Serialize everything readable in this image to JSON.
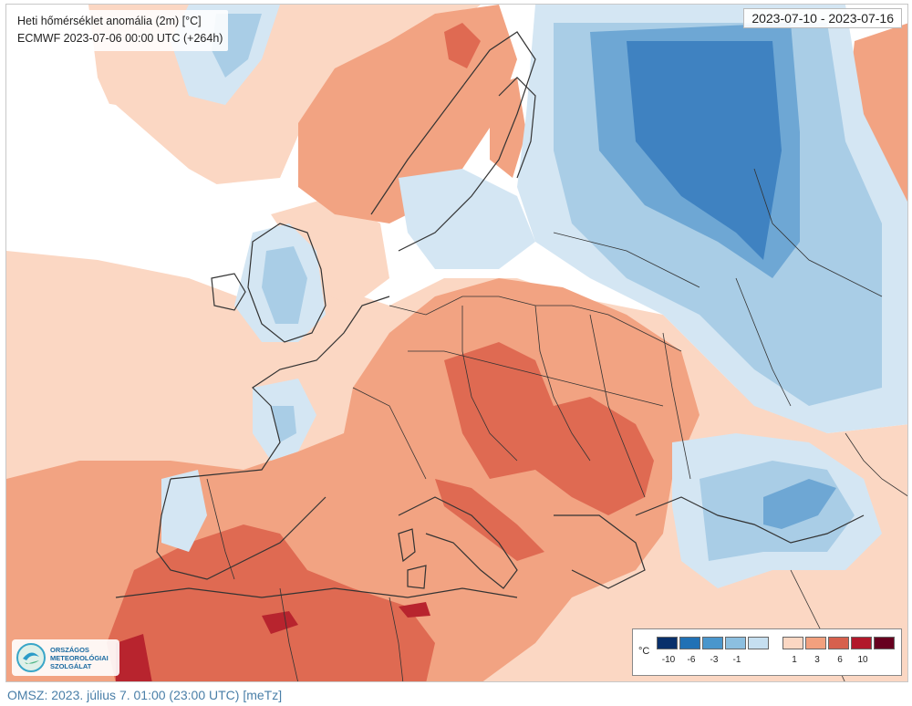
{
  "header": {
    "title": "Heti hőmérséklet anomália (2m) [°C]",
    "model_run": "ECMWF 2023-07-06 00:00 UTC (+264h)",
    "date_range": "2023-07-10 - 2023-07-16"
  },
  "logo": {
    "lines": [
      "ORSZÁGOS",
      "METEOROLÓGIAI",
      "SZOLGÁLAT"
    ],
    "icon": "omsz-logo-icon"
  },
  "legend": {
    "unit": "°C",
    "swatches": [
      {
        "color": "#08306b",
        "label": "-10"
      },
      {
        "color": "#2171b5",
        "label": "-6"
      },
      {
        "color": "#4a96cc",
        "label": "-3"
      },
      {
        "color": "#8cbfe0",
        "label": "-1"
      },
      {
        "color": "#c6dff0",
        "label": ""
      },
      {
        "color": "#fbd7c3",
        "label": "1"
      },
      {
        "color": "#f2a07e",
        "label": "3"
      },
      {
        "color": "#d6604d",
        "label": "6"
      },
      {
        "color": "#b2182b",
        "label": "10"
      },
      {
        "color": "#67001f",
        "label": ""
      }
    ]
  },
  "colors": {
    "warm_light": "#fbd7c3",
    "warm_mid": "#f2a382",
    "warm_strong": "#df6a52",
    "warm_max": "#b8242e",
    "cold_light": "#d4e6f3",
    "cold_mid": "#a9cde6",
    "cold_strong": "#6ea7d4",
    "cold_max": "#3f82c1"
  },
  "footer": {
    "text": "OMSZ: 2023. július 7. 01:00 (23:00  UTC)  [meTz]"
  }
}
